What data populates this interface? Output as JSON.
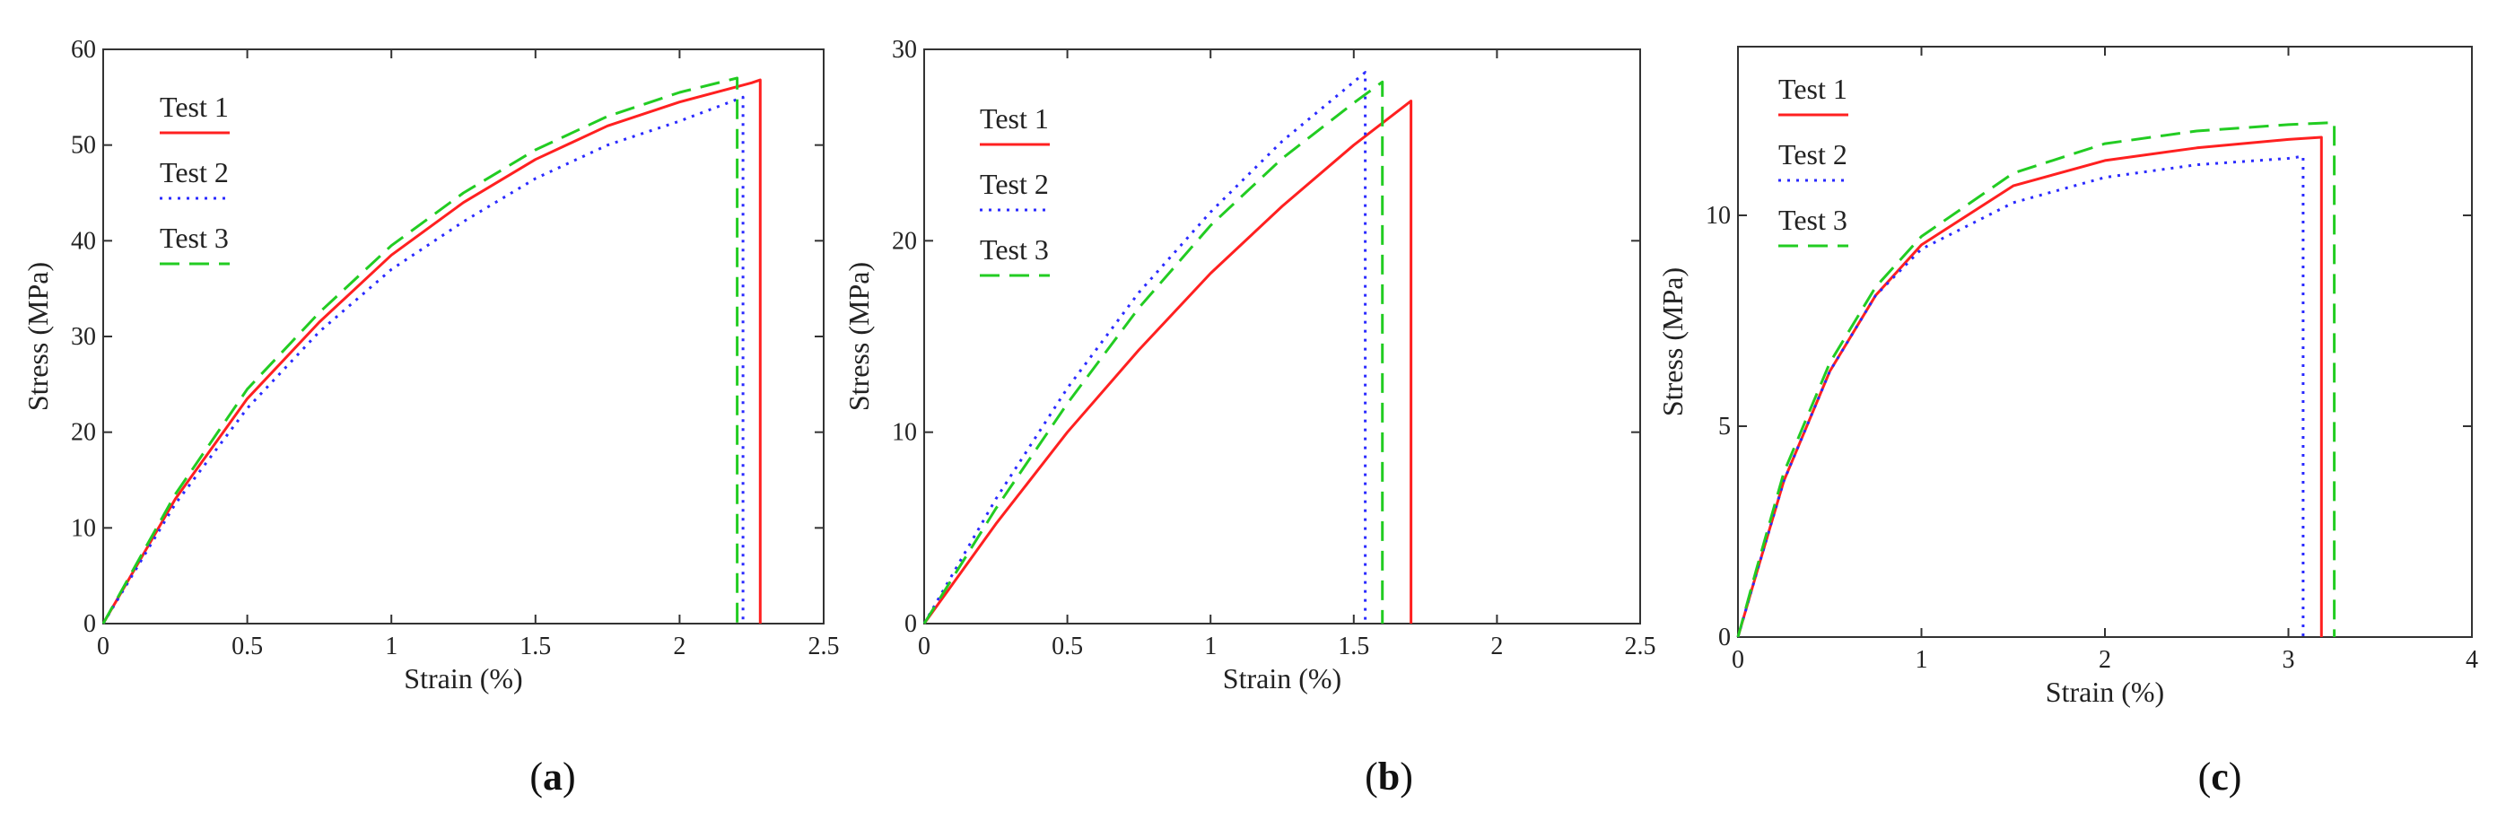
{
  "chart_data": [
    {
      "type": "line",
      "caption": "a",
      "xlabel": "Strain (%)",
      "ylabel": "Stress (MPa)",
      "xlim": [
        0,
        2.5
      ],
      "ylim": [
        0,
        60
      ],
      "xticks": [
        "0",
        "0.5",
        "1",
        "1.5",
        "2",
        "2.5"
      ],
      "yticks": [
        "0",
        "10",
        "20",
        "30",
        "40",
        "50",
        "60"
      ],
      "grid": false,
      "legend_position": "top-left",
      "series": [
        {
          "name": "Test 1",
          "color": "#ff2020",
          "dash": "solid",
          "x": [
            0,
            0.25,
            0.5,
            0.75,
            1.0,
            1.25,
            1.5,
            1.75,
            2.0,
            2.25,
            2.28,
            2.28
          ],
          "y": [
            0,
            13,
            23.5,
            31.5,
            38.5,
            44,
            48.5,
            52,
            54.5,
            56.5,
            56.8,
            0
          ]
        },
        {
          "name": "Test 2",
          "color": "#2a2aff",
          "dash": "dotted",
          "x": [
            0,
            0.25,
            0.5,
            0.75,
            1.0,
            1.25,
            1.5,
            1.75,
            2.0,
            2.22,
            2.22
          ],
          "y": [
            0,
            12.5,
            22.5,
            30.5,
            37,
            42,
            46.5,
            50,
            52.5,
            55,
            0
          ]
        },
        {
          "name": "Test 3",
          "color": "#22cc22",
          "dash": "dashed",
          "x": [
            0,
            0.25,
            0.5,
            0.75,
            1.0,
            1.25,
            1.5,
            1.75,
            2.0,
            2.2,
            2.2
          ],
          "y": [
            0,
            13.5,
            24.5,
            32.5,
            39.5,
            45,
            49.5,
            53,
            55.5,
            57,
            0
          ]
        }
      ]
    },
    {
      "type": "line",
      "caption": "b",
      "xlabel": "Strain (%)",
      "ylabel": "Stress (MPa)",
      "xlim": [
        0,
        2.5
      ],
      "ylim": [
        0,
        30
      ],
      "xticks": [
        "0",
        "0.5",
        "1",
        "1.5",
        "2",
        "2.5"
      ],
      "yticks": [
        "0",
        "10",
        "20",
        "30"
      ],
      "grid": false,
      "legend_position": "top-left",
      "series": [
        {
          "name": "Test 1",
          "color": "#ff2020",
          "dash": "solid",
          "x": [
            0,
            0.25,
            0.5,
            0.75,
            1.0,
            1.25,
            1.5,
            1.7,
            1.7
          ],
          "y": [
            0,
            5.2,
            10,
            14.3,
            18.3,
            21.8,
            25,
            27.3,
            0
          ]
        },
        {
          "name": "Test 2",
          "color": "#2a2aff",
          "dash": "dotted",
          "x": [
            0,
            0.25,
            0.5,
            0.75,
            1.0,
            1.25,
            1.5,
            1.54,
            1.54
          ],
          "y": [
            0,
            6.5,
            12.3,
            17.3,
            21.5,
            25.2,
            28.3,
            28.8,
            0
          ]
        },
        {
          "name": "Test 3",
          "color": "#22cc22",
          "dash": "dashed",
          "x": [
            0,
            0.25,
            0.5,
            0.75,
            1.0,
            1.25,
            1.5,
            1.6,
            1.6
          ],
          "y": [
            0,
            6,
            11.5,
            16.5,
            20.8,
            24.3,
            27.2,
            28.3,
            0
          ]
        }
      ]
    },
    {
      "type": "line",
      "caption": "c",
      "xlabel": "Strain (%)",
      "ylabel": "Stress (MPa)",
      "xlim": [
        0,
        4
      ],
      "ylim": [
        0,
        14
      ],
      "xticks": [
        "0",
        "1",
        "2",
        "3",
        "4"
      ],
      "yticks": [
        "0",
        "5",
        "10"
      ],
      "grid": false,
      "legend_position": "top-left",
      "series": [
        {
          "name": "Test 1",
          "color": "#ff2020",
          "dash": "solid",
          "x": [
            0,
            0.1,
            0.25,
            0.5,
            0.75,
            1.0,
            1.5,
            2.0,
            2.5,
            3.0,
            3.18,
            3.18
          ],
          "y": [
            0,
            1.5,
            3.7,
            6.3,
            8.1,
            9.3,
            10.7,
            11.3,
            11.6,
            11.8,
            11.85,
            0
          ]
        },
        {
          "name": "Test 2",
          "color": "#2a2aff",
          "dash": "dotted",
          "x": [
            0,
            0.1,
            0.25,
            0.5,
            0.75,
            1.0,
            1.5,
            2.0,
            2.5,
            3.0,
            3.08,
            3.08
          ],
          "y": [
            0,
            1.5,
            3.7,
            6.3,
            8.1,
            9.2,
            10.3,
            10.9,
            11.2,
            11.35,
            11.4,
            0
          ]
        },
        {
          "name": "Test 3",
          "color": "#22cc22",
          "dash": "dashed",
          "x": [
            0,
            0.1,
            0.25,
            0.5,
            0.75,
            1.0,
            1.5,
            2.0,
            2.5,
            3.0,
            3.25,
            3.25
          ],
          "y": [
            0,
            1.6,
            3.9,
            6.5,
            8.3,
            9.5,
            11.0,
            11.7,
            12.0,
            12.15,
            12.2,
            0
          ]
        }
      ]
    }
  ]
}
